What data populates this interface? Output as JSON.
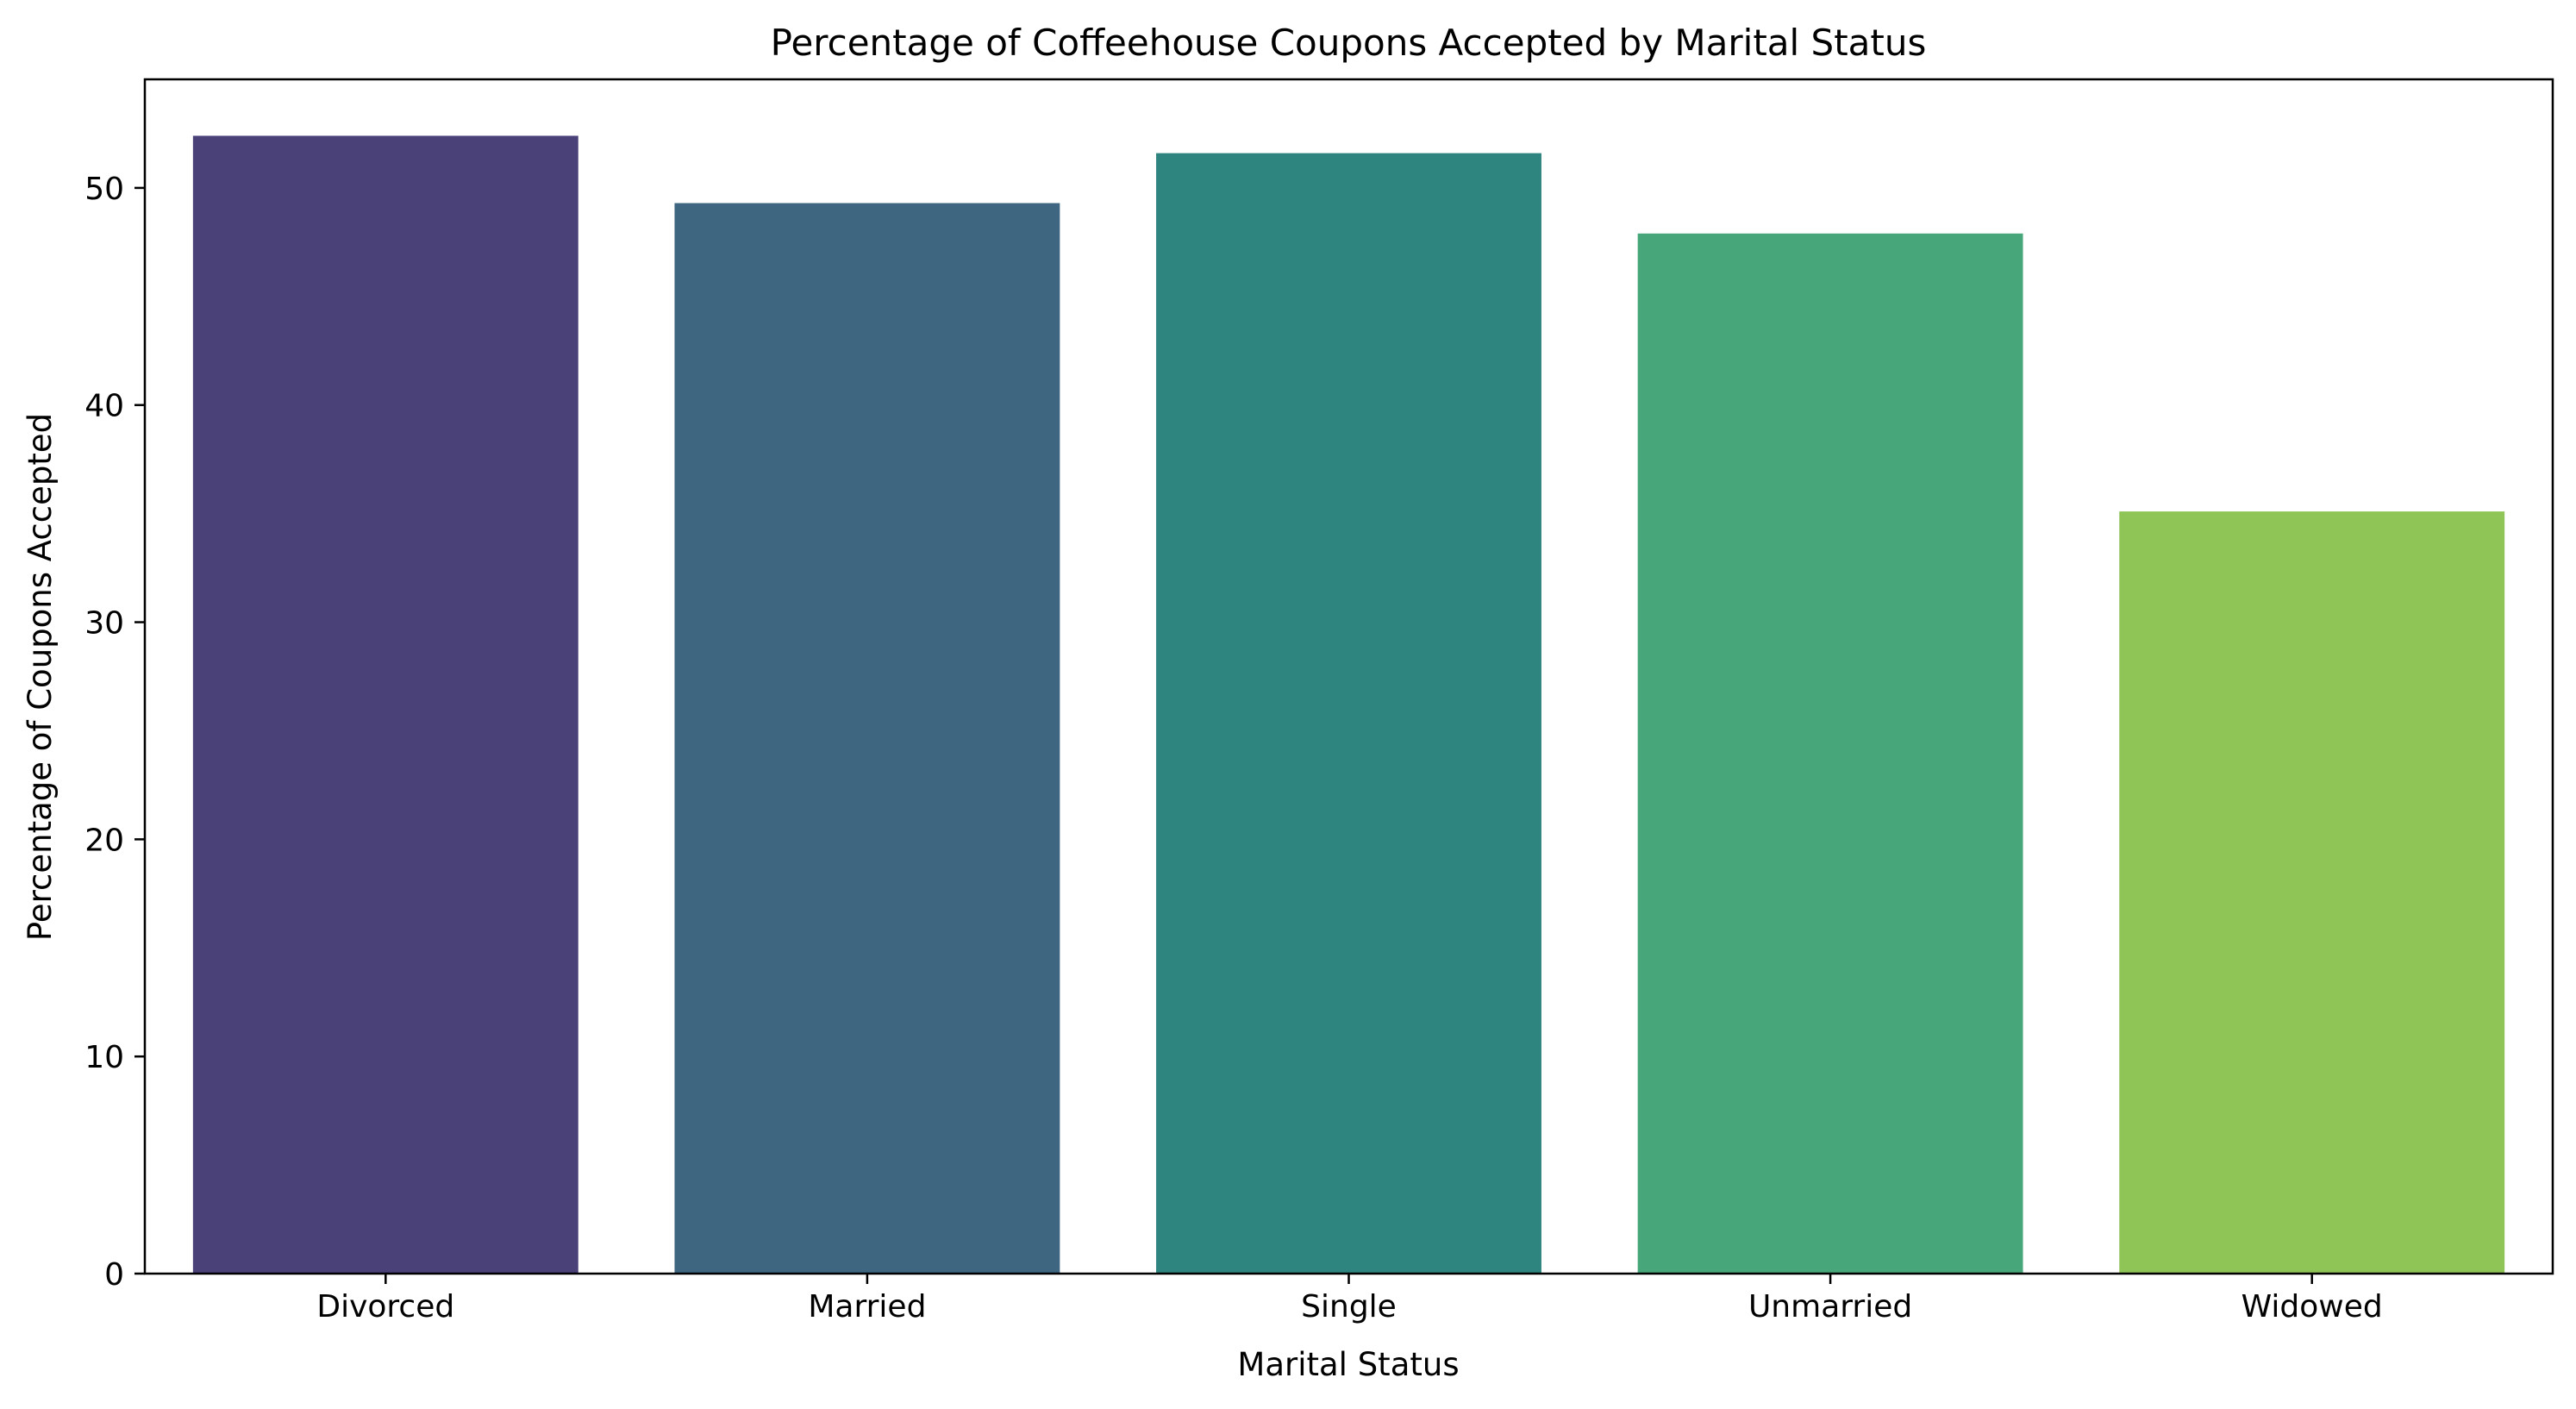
{
  "chart_data": {
    "type": "bar",
    "title": "Percentage of Coffeehouse Coupons Accepted by Marital Status",
    "xlabel": "Marital Status",
    "ylabel": "Percentage of Coupons Accepted",
    "categories": [
      "Divorced",
      "Married",
      "Single",
      "Unmarried",
      "Widowed"
    ],
    "values": [
      52.4,
      49.3,
      51.6,
      47.9,
      35.1
    ],
    "colors": [
      "#4a4178",
      "#3e6681",
      "#2e847e",
      "#47a77a",
      "#8fc457"
    ],
    "ylim": [
      0,
      55
    ],
    "yticks": [
      0,
      10,
      20,
      30,
      40,
      50
    ],
    "grid": false,
    "legend": "none"
  }
}
